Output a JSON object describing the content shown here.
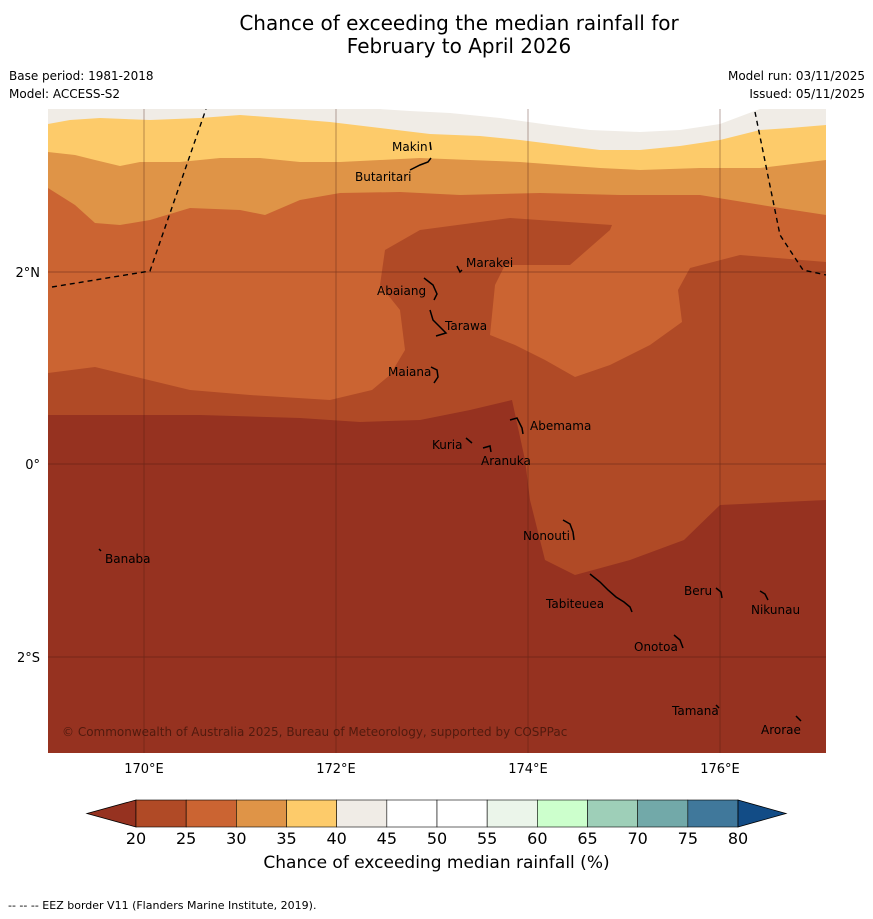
{
  "title": {
    "line1": "Chance of exceeding the median rainfall for",
    "line2": "February to April 2026"
  },
  "meta": {
    "base_period": "Base period: 1981-2018",
    "model": "Model: ACCESS-S2",
    "model_run": "Model run: 03/11/2025",
    "issued": "Issued: 05/11/2025"
  },
  "map": {
    "copyright": "© Commonwealth of Australia 2025, Bureau of Meteorology, supported by COSPPac",
    "lon_ticks": [
      "170°E",
      "172°E",
      "174°E",
      "176°E"
    ],
    "lat_ticks": [
      "2°N",
      "0°",
      "2°S"
    ],
    "islands": [
      {
        "name": "Makin"
      },
      {
        "name": "Butaritari"
      },
      {
        "name": "Marakei"
      },
      {
        "name": "Abaiang"
      },
      {
        "name": "Tarawa"
      },
      {
        "name": "Maiana"
      },
      {
        "name": "Abemama"
      },
      {
        "name": "Kuria"
      },
      {
        "name": "Aranuka"
      },
      {
        "name": "Banaba"
      },
      {
        "name": "Nonouti"
      },
      {
        "name": "Beru"
      },
      {
        "name": "Tabiteuea"
      },
      {
        "name": "Nikunau"
      },
      {
        "name": "Onotoa"
      },
      {
        "name": "Tamana"
      },
      {
        "name": "Arorae"
      }
    ]
  },
  "colorbar": {
    "title": "Chance of exceeding median rainfall (%)",
    "ticks": [
      "20",
      "25",
      "30",
      "35",
      "40",
      "45",
      "50",
      "55",
      "60",
      "65",
      "70",
      "75",
      "80"
    ],
    "colors": [
      "#b04a26",
      "#cb6432",
      "#df9447",
      "#fdcb6a",
      "#f0ece6",
      "#ffffff",
      "#ffffff",
      "#ebf5ea",
      "#ccffcc",
      "#9ecfb8",
      "#72a9a9",
      "#40789b"
    ],
    "under_color": "#963220",
    "over_color": "#124c86"
  },
  "footer": "--  --  -- EEZ border V11 (Flanders Marine Institute, 2019)."
}
